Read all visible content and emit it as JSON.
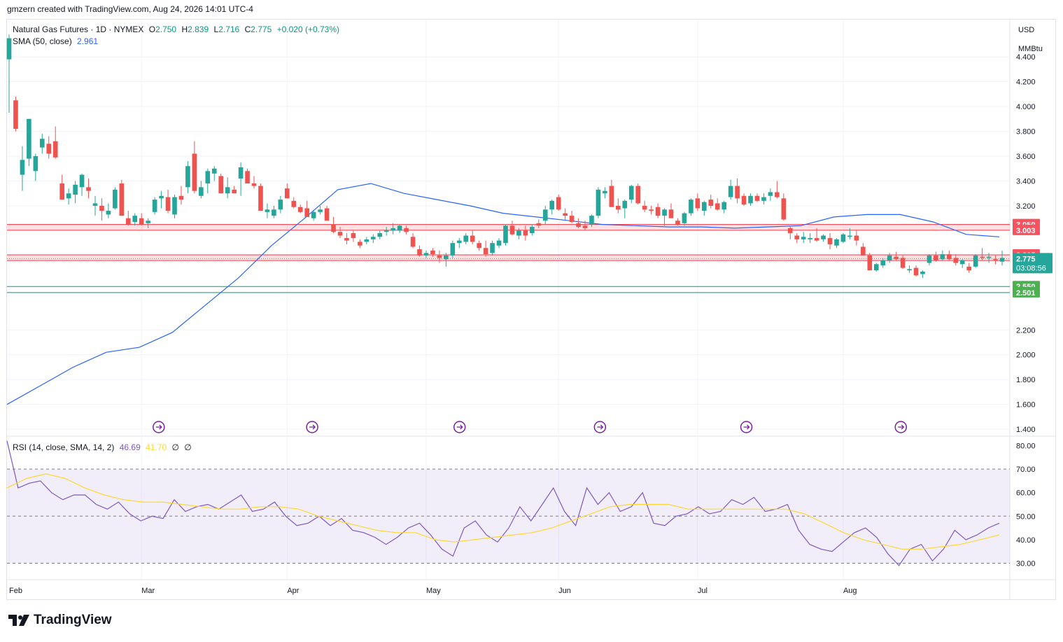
{
  "attribution": "gmzern created with TradingView.com, Aug 24, 2026 14:01 UTC-4",
  "legend": {
    "symbol": "Natural Gas Futures · 1D · NYMEX",
    "o_label": "O",
    "o": "2.750",
    "h_label": "H",
    "h": "2.839",
    "l_label": "L",
    "l": "2.716",
    "c_label": "C",
    "c": "2.775",
    "change": "+0.020 (+0.73%)",
    "sma_label": "SMA (50, close)",
    "sma_value": "2.961"
  },
  "rsi_legend": {
    "label": "RSI (14, close, SMA, 14, 2)",
    "rsi": "46.69",
    "rsi_ma": "41.70",
    "extra1": "∅",
    "extra2": "∅"
  },
  "axis": {
    "currency": "USD",
    "unit": "MMBtu"
  },
  "footer": {
    "brand": "TradingView"
  },
  "colors": {
    "up": "#26a69a",
    "down": "#ef5350",
    "sma": "#2962ff",
    "rsi": "#7e57c2",
    "rsi_ma": "#fdd835",
    "resistance": "#f23645",
    "support": "#089981"
  },
  "chart_data": {
    "type": "candlestick",
    "price_axis": {
      "ticks": [
        "4.400",
        "4.200",
        "4.000",
        "3.800",
        "3.600",
        "3.400",
        "3.200",
        "2.200",
        "2.000",
        "1.800",
        "1.600",
        "1.400"
      ],
      "ylim": [
        1.35,
        4.7
      ]
    },
    "x_ticks": [
      "Feb",
      "Mar",
      "Apr",
      "May",
      "Jun",
      "Jul",
      "Aug"
    ],
    "price_labels": [
      {
        "text": "3.050",
        "value": 3.05,
        "kind": "resistance"
      },
      {
        "text": "3.003",
        "value": 3.003,
        "kind": "resistance"
      },
      {
        "text": "2.805",
        "value": 2.805,
        "kind": "resistance"
      },
      {
        "text": "2.759",
        "value": 2.759,
        "kind": "resistance"
      },
      {
        "text": "2.550",
        "value": 2.55,
        "kind": "support"
      },
      {
        "text": "2.501",
        "value": 2.501,
        "kind": "support"
      }
    ],
    "last_price": {
      "value": "2.775",
      "countdown": "03:08:56"
    },
    "candles": [
      [
        4.38,
        4.58,
        3.95,
        4.55
      ],
      [
        4.05,
        4.08,
        3.8,
        3.82
      ],
      [
        3.45,
        3.68,
        3.32,
        3.57
      ],
      [
        3.58,
        3.9,
        3.52,
        3.9
      ],
      [
        3.48,
        3.62,
        3.4,
        3.6
      ],
      [
        3.67,
        3.78,
        3.62,
        3.74
      ],
      [
        3.7,
        3.76,
        3.58,
        3.62
      ],
      [
        3.72,
        3.84,
        3.58,
        3.59
      ],
      [
        3.38,
        3.45,
        3.25,
        3.25
      ],
      [
        3.26,
        3.34,
        3.21,
        3.3
      ],
      [
        3.29,
        3.4,
        3.22,
        3.37
      ],
      [
        3.35,
        3.46,
        3.28,
        3.45
      ],
      [
        3.35,
        3.42,
        3.26,
        3.32
      ],
      [
        3.2,
        3.28,
        3.12,
        3.22
      ],
      [
        3.2,
        3.26,
        3.08,
        3.16
      ],
      [
        3.13,
        3.22,
        3.1,
        3.16
      ],
      [
        3.18,
        3.35,
        3.17,
        3.33
      ],
      [
        3.38,
        3.41,
        3.12,
        3.12
      ],
      [
        3.1,
        3.16,
        3.04,
        3.05
      ],
      [
        3.07,
        3.14,
        3.04,
        3.12
      ],
      [
        3.1,
        3.14,
        3.04,
        3.05
      ],
      [
        3.06,
        3.1,
        3.02,
        3.08
      ],
      [
        3.15,
        3.27,
        3.13,
        3.25
      ],
      [
        3.26,
        3.32,
        3.18,
        3.28
      ],
      [
        3.27,
        3.33,
        3.14,
        3.16
      ],
      [
        3.13,
        3.29,
        3.1,
        3.27
      ],
      [
        3.28,
        3.36,
        3.21,
        3.25
      ],
      [
        3.35,
        3.56,
        3.3,
        3.52
      ],
      [
        3.62,
        3.72,
        3.3,
        3.32
      ],
      [
        3.28,
        3.4,
        3.26,
        3.35
      ],
      [
        3.38,
        3.5,
        3.3,
        3.48
      ],
      [
        3.46,
        3.52,
        3.4,
        3.5
      ],
      [
        3.44,
        3.46,
        3.3,
        3.3
      ],
      [
        3.3,
        3.43,
        3.26,
        3.35
      ],
      [
        3.33,
        3.36,
        3.3,
        3.3
      ],
      [
        3.42,
        3.55,
        3.28,
        3.51
      ],
      [
        3.48,
        3.5,
        3.38,
        3.38
      ],
      [
        3.38,
        3.44,
        3.34,
        3.36
      ],
      [
        3.36,
        3.38,
        3.16,
        3.16
      ],
      [
        3.15,
        3.22,
        3.1,
        3.17
      ],
      [
        3.12,
        3.2,
        3.1,
        3.17
      ],
      [
        3.17,
        3.28,
        3.14,
        3.25
      ],
      [
        3.34,
        3.38,
        3.26,
        3.26
      ],
      [
        3.24,
        3.27,
        3.18,
        3.19
      ],
      [
        3.19,
        3.21,
        3.14,
        3.15
      ],
      [
        3.18,
        3.24,
        3.11,
        3.11
      ],
      [
        3.1,
        3.16,
        3.08,
        3.15
      ],
      [
        3.15,
        3.2,
        3.13,
        3.17
      ],
      [
        3.18,
        3.2,
        3.08,
        3.08
      ],
      [
        3.05,
        3.11,
        2.98,
        2.99
      ],
      [
        2.99,
        3.03,
        2.94,
        2.96
      ],
      [
        2.94,
        2.98,
        2.89,
        2.92
      ],
      [
        2.98,
        3.0,
        2.91,
        2.94
      ],
      [
        2.91,
        2.93,
        2.86,
        2.88
      ],
      [
        2.91,
        2.95,
        2.89,
        2.93
      ],
      [
        2.93,
        2.97,
        2.9,
        2.95
      ],
      [
        2.95,
        3.0,
        2.93,
        2.98
      ],
      [
        2.99,
        3.03,
        2.96,
        3.0
      ],
      [
        3.0,
        3.06,
        2.97,
        3.02
      ],
      [
        3.0,
        3.05,
        2.98,
        3.04
      ],
      [
        3.02,
        3.04,
        2.97,
        2.99
      ],
      [
        2.95,
        2.98,
        2.86,
        2.87
      ],
      [
        2.85,
        2.88,
        2.79,
        2.8
      ],
      [
        2.8,
        2.84,
        2.78,
        2.82
      ],
      [
        2.84,
        2.86,
        2.79,
        2.81
      ],
      [
        2.8,
        2.84,
        2.74,
        2.78
      ],
      [
        2.77,
        2.82,
        2.71,
        2.8
      ],
      [
        2.8,
        2.92,
        2.78,
        2.9
      ],
      [
        2.9,
        2.94,
        2.86,
        2.92
      ],
      [
        2.91,
        2.98,
        2.89,
        2.96
      ],
      [
        2.96,
        3.0,
        2.89,
        2.91
      ],
      [
        2.9,
        2.92,
        2.84,
        2.86
      ],
      [
        2.86,
        2.92,
        2.79,
        2.81
      ],
      [
        2.82,
        2.92,
        2.8,
        2.9
      ],
      [
        2.88,
        2.94,
        2.86,
        2.92
      ],
      [
        2.9,
        3.05,
        2.88,
        3.04
      ],
      [
        3.04,
        3.08,
        2.96,
        2.97
      ],
      [
        2.96,
        3.02,
        2.93,
        3.0
      ],
      [
        3.0,
        3.04,
        2.92,
        2.96
      ],
      [
        2.98,
        3.05,
        2.96,
        3.03
      ],
      [
        3.06,
        3.09,
        3.02,
        3.04
      ],
      [
        3.08,
        3.2,
        3.05,
        3.17
      ],
      [
        3.17,
        3.25,
        3.13,
        3.24
      ],
      [
        3.27,
        3.29,
        3.16,
        3.17
      ],
      [
        3.14,
        3.18,
        3.08,
        3.12
      ],
      [
        3.12,
        3.16,
        3.06,
        3.07
      ],
      [
        3.06,
        3.1,
        3.02,
        3.03
      ],
      [
        3.04,
        3.08,
        3.0,
        3.02
      ],
      [
        3.05,
        3.13,
        3.03,
        3.12
      ],
      [
        3.12,
        3.35,
        3.1,
        3.33
      ],
      [
        3.3,
        3.35,
        3.26,
        3.32
      ],
      [
        3.36,
        3.41,
        3.19,
        3.19
      ],
      [
        3.2,
        3.26,
        3.14,
        3.17
      ],
      [
        3.18,
        3.25,
        3.1,
        3.24
      ],
      [
        3.25,
        3.37,
        3.22,
        3.36
      ],
      [
        3.36,
        3.38,
        3.21,
        3.22
      ],
      [
        3.2,
        3.24,
        3.15,
        3.17
      ],
      [
        3.17,
        3.2,
        3.13,
        3.16
      ],
      [
        3.19,
        3.22,
        3.1,
        3.12
      ],
      [
        3.12,
        3.18,
        3.04,
        3.17
      ],
      [
        3.17,
        3.22,
        3.1,
        3.1
      ],
      [
        3.08,
        3.1,
        3.04,
        3.05
      ],
      [
        3.06,
        3.15,
        3.04,
        3.14
      ],
      [
        3.14,
        3.26,
        3.12,
        3.25
      ],
      [
        3.26,
        3.3,
        3.16,
        3.18
      ],
      [
        3.16,
        3.24,
        3.12,
        3.23
      ],
      [
        3.25,
        3.29,
        3.18,
        3.2
      ],
      [
        3.22,
        3.26,
        3.16,
        3.17
      ],
      [
        3.17,
        3.24,
        3.14,
        3.23
      ],
      [
        3.27,
        3.41,
        3.25,
        3.36
      ],
      [
        3.36,
        3.42,
        3.22,
        3.26
      ],
      [
        3.28,
        3.3,
        3.2,
        3.21
      ],
      [
        3.22,
        3.3,
        3.2,
        3.28
      ],
      [
        3.28,
        3.3,
        3.23,
        3.24
      ],
      [
        3.24,
        3.3,
        3.21,
        3.27
      ],
      [
        3.28,
        3.34,
        3.24,
        3.31
      ],
      [
        3.31,
        3.4,
        3.26,
        3.27
      ],
      [
        3.26,
        3.3,
        3.08,
        3.09
      ],
      [
        3.02,
        3.04,
        2.93,
        2.98
      ],
      [
        2.96,
        2.98,
        2.9,
        2.93
      ],
      [
        2.93,
        2.99,
        2.9,
        2.95
      ],
      [
        2.93,
        2.98,
        2.9,
        2.94
      ],
      [
        2.94,
        3.02,
        2.91,
        2.92
      ],
      [
        2.93,
        2.97,
        2.91,
        2.96
      ],
      [
        2.94,
        2.98,
        2.85,
        2.89
      ],
      [
        2.88,
        2.94,
        2.86,
        2.93
      ],
      [
        2.91,
        2.98,
        2.9,
        2.97
      ],
      [
        2.95,
        3.02,
        2.93,
        2.96
      ],
      [
        2.96,
        3.0,
        2.88,
        2.92
      ],
      [
        2.87,
        2.9,
        2.8,
        2.8
      ],
      [
        2.8,
        2.82,
        2.68,
        2.68
      ],
      [
        2.68,
        2.74,
        2.67,
        2.73
      ],
      [
        2.72,
        2.78,
        2.7,
        2.76
      ],
      [
        2.76,
        2.82,
        2.74,
        2.8
      ],
      [
        2.79,
        2.83,
        2.76,
        2.77
      ],
      [
        2.78,
        2.8,
        2.69,
        2.7
      ],
      [
        2.68,
        2.72,
        2.66,
        2.69
      ],
      [
        2.7,
        2.72,
        2.63,
        2.64
      ],
      [
        2.65,
        2.68,
        2.62,
        2.67
      ],
      [
        2.74,
        2.81,
        2.72,
        2.8
      ],
      [
        2.8,
        2.83,
        2.75,
        2.76
      ],
      [
        2.77,
        2.84,
        2.76,
        2.81
      ],
      [
        2.81,
        2.84,
        2.76,
        2.77
      ],
      [
        2.78,
        2.81,
        2.72,
        2.74
      ],
      [
        2.73,
        2.77,
        2.7,
        2.76
      ],
      [
        2.71,
        2.74,
        2.66,
        2.68
      ],
      [
        2.71,
        2.81,
        2.7,
        2.8
      ],
      [
        2.79,
        2.86,
        2.76,
        2.78
      ],
      [
        2.78,
        2.82,
        2.74,
        2.79
      ],
      [
        2.77,
        2.8,
        2.73,
        2.76
      ],
      [
        2.75,
        2.84,
        2.72,
        2.78
      ]
    ],
    "sma": [
      1.6,
      1.75,
      1.9,
      2.02,
      2.06,
      2.18,
      2.4,
      2.62,
      2.88,
      3.1,
      3.33,
      3.38,
      3.3,
      3.25,
      3.2,
      3.14,
      3.11,
      3.08,
      3.05,
      3.04,
      3.03,
      3.03,
      3.02,
      3.03,
      3.04,
      3.11,
      3.13,
      3.13,
      3.07,
      2.97,
      2.95
    ],
    "rsi": [
      82,
      62,
      64,
      65,
      60,
      57,
      59,
      59,
      55,
      53,
      56,
      51,
      48,
      50,
      49,
      57,
      52,
      54,
      55,
      53,
      56,
      59,
      52,
      53,
      56,
      50,
      46,
      47,
      50,
      46,
      49,
      44,
      43,
      41,
      38,
      41,
      45,
      47,
      42,
      36,
      33,
      45,
      48,
      42,
      39,
      45,
      54,
      48,
      55,
      62,
      52,
      46,
      62,
      55,
      60,
      52,
      54,
      60,
      47,
      46,
      50,
      51,
      54,
      51,
      52,
      57,
      55,
      58,
      52,
      53,
      55,
      44,
      38,
      36,
      35,
      39,
      43,
      45,
      41,
      34,
      29,
      36,
      38,
      31,
      36,
      44,
      40,
      42,
      45,
      47
    ],
    "rsi_ma": [
      62,
      66,
      68,
      66,
      62,
      59,
      57,
      56,
      56,
      55,
      54,
      53,
      53,
      54,
      54,
      53,
      50,
      48,
      46,
      44,
      43,
      43,
      40,
      39,
      40,
      41,
      42,
      43,
      45,
      48,
      51,
      54,
      55,
      55,
      55,
      53,
      53,
      53,
      53,
      53,
      53,
      51,
      47,
      43,
      40,
      38,
      36,
      36,
      37,
      38,
      40,
      42
    ],
    "rsi_axis": {
      "ticks": [
        "80.00",
        "70.00",
        "60.00",
        "50.00",
        "40.00",
        "30.00"
      ],
      "ylim": [
        23,
        84
      ]
    }
  }
}
